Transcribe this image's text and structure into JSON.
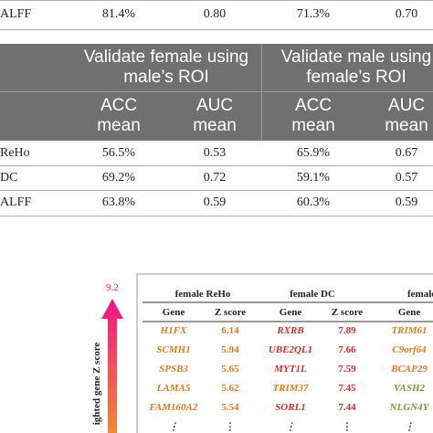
{
  "top_row": [
    "ALFF",
    "81.4%",
    "0.80",
    "71.3%",
    "0.70"
  ],
  "table": {
    "group_headers": [
      "Validate female using male’s ROI",
      "Validate male using female’s ROI"
    ],
    "sub_headers": [
      "ACC mean",
      "AUC mean",
      "ACC mean",
      "AUC mean"
    ],
    "rows": [
      [
        "ReHo",
        "56.5%",
        "0.53",
        "65.9%",
        "0.67"
      ],
      [
        "DC",
        "69.2%",
        "0.72",
        "59.1%",
        "0.57"
      ],
      [
        "ALFF",
        "63.8%",
        "0.59",
        "60.3%",
        "0.59"
      ]
    ]
  },
  "gene_figure": {
    "scale_max": "9.2",
    "axis_label": "ighted gene Z score",
    "groups": [
      "female ReHo",
      "female DC",
      "female"
    ],
    "col_headers": [
      "Gene",
      "Z score",
      "Gene",
      "Z score",
      "Gene"
    ],
    "rows": [
      [
        "H1FX",
        "6.14",
        "RXRB",
        "7.89",
        "TRIM61"
      ],
      [
        "SCMH1",
        "5.94",
        "UBE2QL1",
        "7.66",
        "C9orf64"
      ],
      [
        "SPSB3",
        "5.65",
        "MYT1L",
        "7.59",
        "BCAP29"
      ],
      [
        "LAMA5",
        "5.62",
        "TRIM37",
        "7.45",
        "VASH2"
      ],
      [
        "FAM160A2",
        "5.54",
        "SORL1",
        "7.44",
        "NLGN4Y"
      ],
      [
        "⋮",
        "⋮",
        "⋮",
        "⋮",
        "⋮"
      ]
    ],
    "gene_colors": [
      [
        "#e07a22",
        "#e07a22",
        "#c8322c",
        "#c8322c",
        "#e07a22"
      ],
      [
        "#e07a22",
        "#e07a22",
        "#c8322c",
        "#c8322c",
        "#e07a22"
      ],
      [
        "#e07a22",
        "#e07a22",
        "#c8322c",
        "#c8322c",
        "#e07a22"
      ],
      [
        "#e07a22",
        "#e07a22",
        "#e07a22",
        "#c8322c",
        "#7a9a3a"
      ],
      [
        "#e07a22",
        "#e07a22",
        "#c8322c",
        "#c8322c",
        "#7a9a3a"
      ],
      [
        "#555555",
        "#555555",
        "#555555",
        "#555555",
        "#555555"
      ]
    ]
  }
}
